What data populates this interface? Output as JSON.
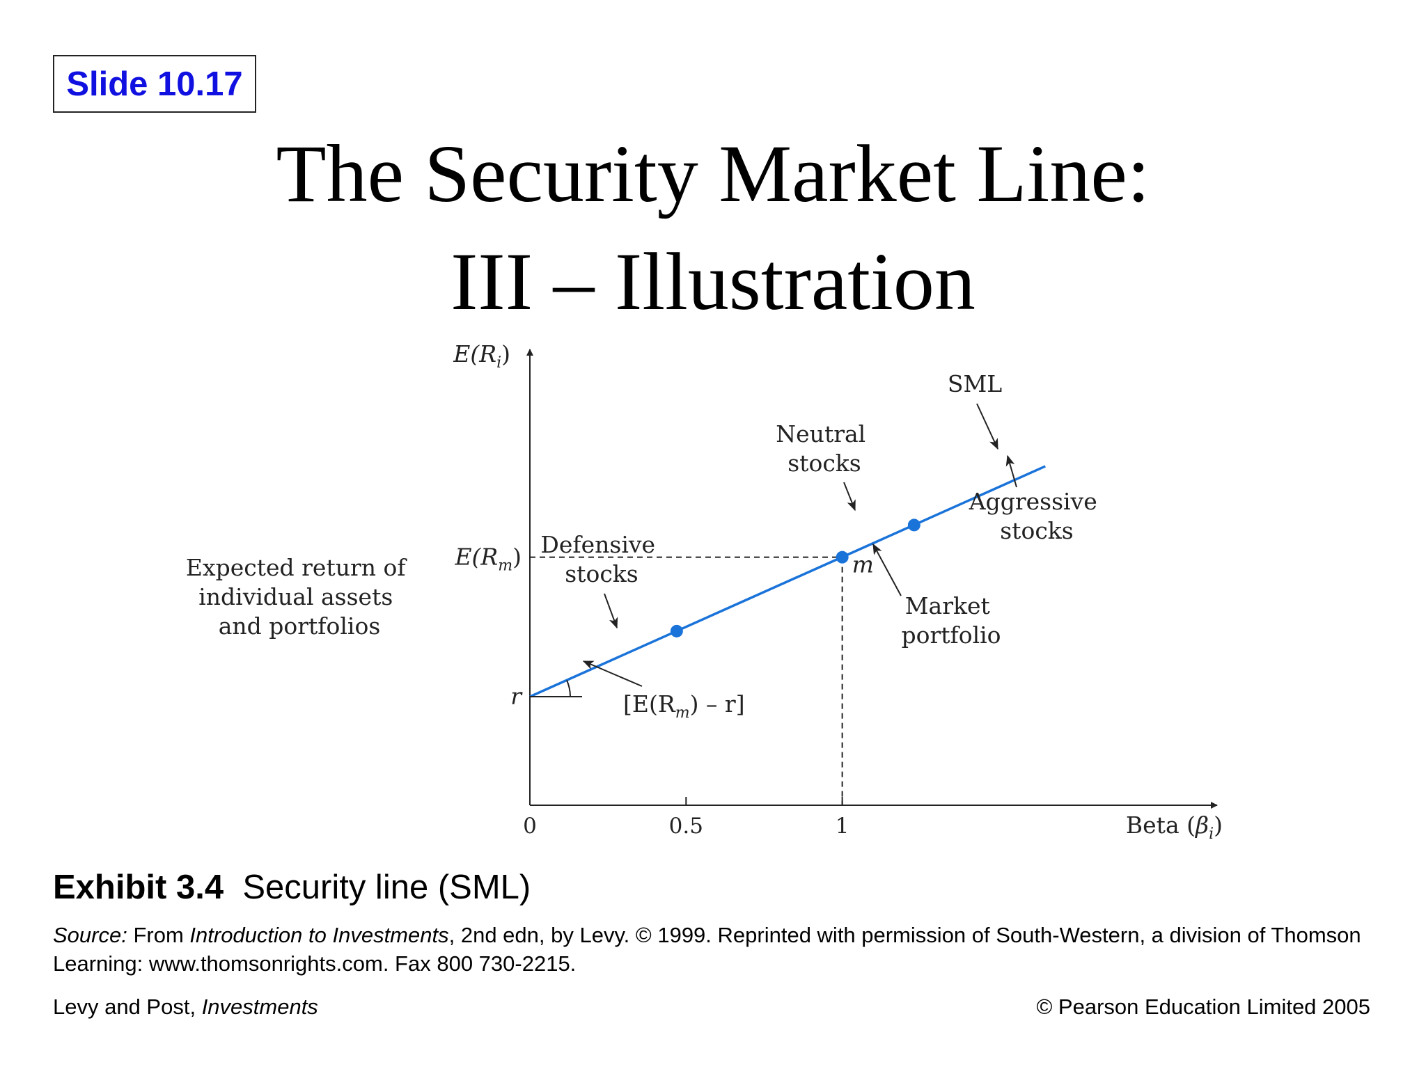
{
  "slide": {
    "badge": "Slide 10.17"
  },
  "title": {
    "line1": "The Security Market Line:",
    "line2": "III – Illustration"
  },
  "chart_data": {
    "type": "line",
    "title": "",
    "xlabel": "Beta",
    "ylabel": "E(R",
    "ylabel_sub": "i",
    "xlabel_symbol": "β",
    "xlabel_sub": "i",
    "xticks": [
      {
        "value": 0,
        "label": "0"
      },
      {
        "value": 0.5,
        "label": "0.5"
      },
      {
        "value": 1,
        "label": "1"
      }
    ],
    "xlim": [
      0,
      2.2
    ],
    "ylim": [
      0,
      1.95
    ],
    "series": [
      {
        "name": "SML",
        "x": [
          0,
          1.65
        ],
        "y": [
          0.4644,
          1.45
        ],
        "color": "#1a73d9"
      }
    ],
    "points": [
      {
        "x": 0.47,
        "y": 0.7447
      },
      {
        "x": 1.0,
        "y": 1.0609
      },
      {
        "x": 1.23,
        "y": 1.1985
      }
    ],
    "y_markers": {
      "r": {
        "value": 0.4644,
        "label": "r"
      },
      "market_return": {
        "value": 1.0609,
        "label_main": "E(R",
        "label_sub": "m"
      }
    },
    "point_label_m": "m",
    "side_label": [
      "Expected return of",
      "individual assets",
      "and portfolios"
    ],
    "annotations": {
      "sml": [
        "SML"
      ],
      "neutral": [
        "Neutral",
        "stocks"
      ],
      "aggressive": [
        "Aggressive",
        "stocks"
      ],
      "defensive": [
        "Defensive",
        "stocks"
      ],
      "market": [
        "Market",
        "portfolio"
      ],
      "slope": {
        "main": "[E(R",
        "sub": "m",
        "tail": ") – r]"
      }
    }
  },
  "caption": {
    "exhibit": "Exhibit 3.4",
    "text": "Security line (SML)",
    "source_label": "Source:",
    "source_text1": " From ",
    "source_book": "Introduction to Investments",
    "source_text2": ", 2nd edn, by Levy. © 1999. Reprinted with permission of South-Western, a division of Thomson Learning: www.thomsonrights.com. Fax 800 730-2215."
  },
  "footer": {
    "authors": "Levy and Post, ",
    "book": "Investments",
    "copyright": "© Pearson Education Limited 2005"
  }
}
